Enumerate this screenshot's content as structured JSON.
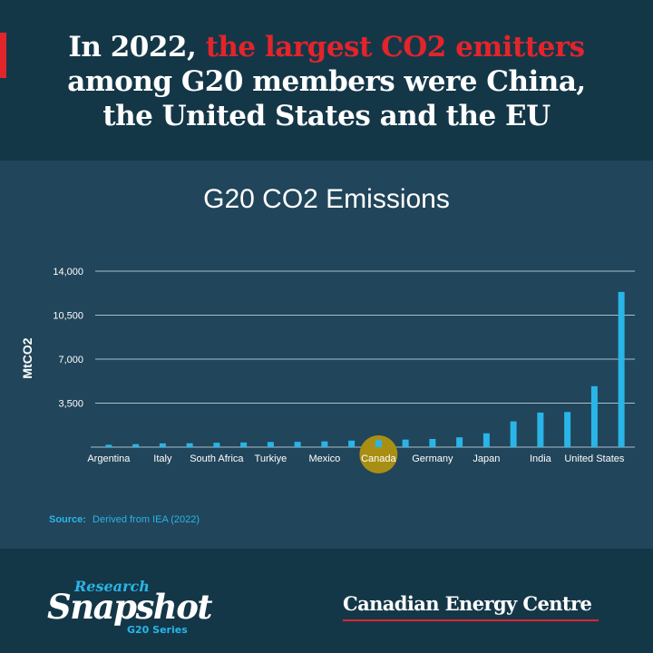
{
  "headline": {
    "before": "In 2022, ",
    "highlight": "the largest CO2 emitters",
    "line2": "among G20 members were China,",
    "line3": "the United States and the EU"
  },
  "colors": {
    "accent_red": "#e2242b",
    "bar_blue": "#29b5e8",
    "highlight_gold": "#a88f14"
  },
  "chart_data": {
    "type": "bar",
    "title": "G20 CO2 Emissions",
    "ylabel": "MtCO2",
    "xlabel": "",
    "ylim": [
      0,
      14000
    ],
    "yticks": [
      3500,
      7000,
      10500,
      14000
    ],
    "ytick_labels": [
      "3,500",
      "7,000",
      "10,500",
      "14,000"
    ],
    "categories": [
      "Argentina",
      "",
      "Italy",
      "",
      "South Africa",
      "",
      "Turkiye",
      "",
      "Mexico",
      "",
      "Canada",
      "",
      "Germany",
      "",
      "Japan",
      "",
      "India",
      "",
      "United States",
      ""
    ],
    "values": [
      190,
      240,
      300,
      310,
      350,
      370,
      410,
      420,
      460,
      520,
      560,
      600,
      650,
      780,
      1100,
      2050,
      2750,
      2800,
      4850,
      12350
    ],
    "highlighted_category": "Canada",
    "grid": true
  },
  "source": {
    "label": "Source:",
    "text": "Derived from IEA (2022)"
  },
  "footer": {
    "logo_research": "Research",
    "logo_snapshot": "Snapshot",
    "logo_series": "G20 Series",
    "brand": "Canadian Energy Centre"
  }
}
